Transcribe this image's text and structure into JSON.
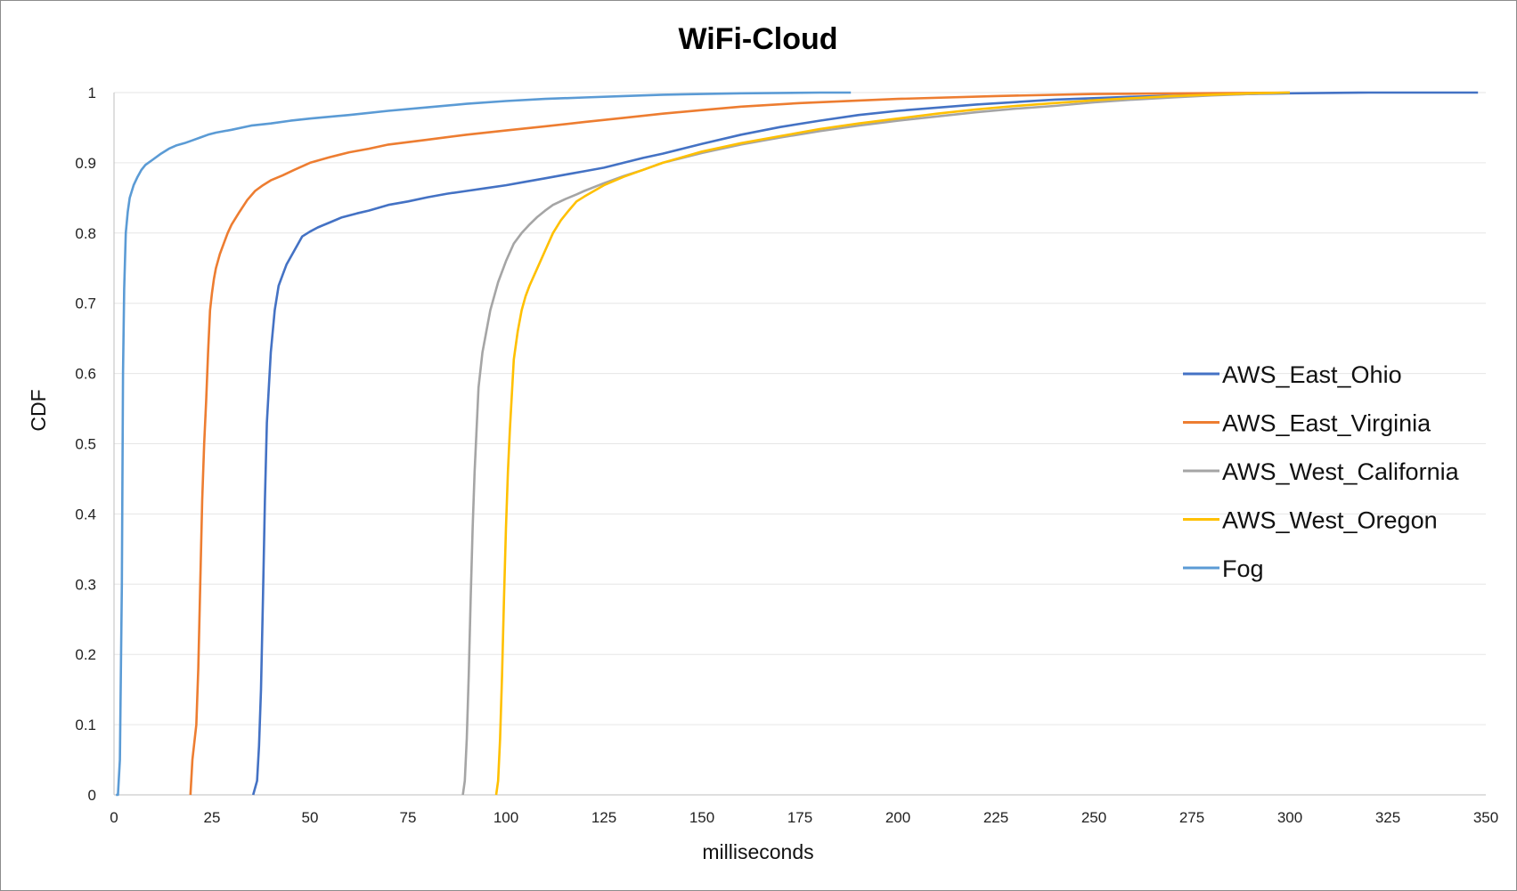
{
  "chart_data": {
    "type": "line",
    "title": "WiFi-Cloud",
    "xlabel": "milliseconds",
    "ylabel": "CDF",
    "xlim": [
      0,
      350
    ],
    "ylim": [
      0,
      1
    ],
    "xticks": [
      0,
      25,
      50,
      75,
      100,
      125,
      150,
      175,
      200,
      225,
      250,
      275,
      300,
      325,
      350
    ],
    "yticks": [
      0,
      0.1,
      0.2,
      0.3,
      0.4,
      0.5,
      0.6,
      0.7,
      0.8,
      0.9,
      1
    ],
    "xtick_labels": [
      "0",
      "25",
      "50",
      "75",
      "100",
      "125",
      "150",
      "175",
      "200",
      "225",
      "250",
      "275",
      "300",
      "325",
      "350"
    ],
    "ytick_labels": [
      "0",
      "0.1",
      "0.2",
      "0.3",
      "0.4",
      "0.5",
      "0.6",
      "0.7",
      "0.8",
      "0.9",
      "1"
    ],
    "grid": "horizontal",
    "legend_position": "right",
    "series": [
      {
        "name": "AWS_East_Ohio",
        "color": "#4472C4",
        "x": [
          35.5,
          36.5,
          37,
          37.5,
          38,
          38.5,
          39,
          39.5,
          40,
          41,
          42,
          43,
          44,
          46,
          48,
          50,
          52,
          55,
          58,
          62,
          65,
          70,
          75,
          80,
          85,
          90,
          95,
          100,
          105,
          110,
          115,
          120,
          125,
          130,
          135,
          140,
          145,
          150,
          160,
          170,
          180,
          190,
          200,
          220,
          240,
          260,
          280,
          300,
          320,
          340,
          348
        ],
        "y": [
          0,
          0.02,
          0.07,
          0.15,
          0.28,
          0.42,
          0.53,
          0.58,
          0.63,
          0.69,
          0.725,
          0.74,
          0.755,
          0.775,
          0.795,
          0.802,
          0.808,
          0.815,
          0.822,
          0.828,
          0.832,
          0.84,
          0.845,
          0.851,
          0.856,
          0.86,
          0.864,
          0.868,
          0.873,
          0.878,
          0.883,
          0.888,
          0.893,
          0.9,
          0.907,
          0.913,
          0.92,
          0.927,
          0.94,
          0.951,
          0.96,
          0.968,
          0.974,
          0.983,
          0.99,
          0.994,
          0.997,
          0.999,
          1.0,
          1.0,
          1.0
        ]
      },
      {
        "name": "AWS_East_Virginia",
        "color": "#ED7D31",
        "x": [
          19.5,
          20,
          21,
          21.5,
          22,
          22.5,
          23,
          23.5,
          24,
          24.5,
          25,
          25.5,
          26,
          27,
          28,
          29,
          30,
          32,
          34,
          36,
          38,
          40,
          43,
          46,
          50,
          55,
          60,
          65,
          70,
          80,
          90,
          100,
          110,
          120,
          130,
          140,
          150,
          160,
          175,
          200,
          225,
          250,
          275,
          300
        ],
        "y": [
          0,
          0.05,
          0.1,
          0.18,
          0.3,
          0.42,
          0.5,
          0.56,
          0.63,
          0.69,
          0.715,
          0.735,
          0.75,
          0.77,
          0.785,
          0.8,
          0.812,
          0.83,
          0.847,
          0.86,
          0.868,
          0.875,
          0.882,
          0.89,
          0.9,
          0.908,
          0.915,
          0.92,
          0.926,
          0.933,
          0.94,
          0.946,
          0.952,
          0.958,
          0.964,
          0.97,
          0.975,
          0.98,
          0.985,
          0.991,
          0.995,
          0.998,
          0.999,
          1.0
        ]
      },
      {
        "name": "AWS_West_California",
        "color": "#A5A5A5",
        "x": [
          89,
          89.5,
          90,
          90.5,
          91,
          91.5,
          92,
          92.5,
          93,
          94,
          95,
          96,
          97,
          98,
          100,
          102,
          104,
          106,
          108,
          110,
          112,
          115,
          118,
          120,
          125,
          130,
          135,
          140,
          150,
          160,
          170,
          180,
          190,
          200,
          210,
          220,
          230,
          240,
          250,
          260,
          270,
          280,
          290,
          300
        ],
        "y": [
          0,
          0.02,
          0.08,
          0.17,
          0.28,
          0.38,
          0.46,
          0.52,
          0.58,
          0.63,
          0.66,
          0.69,
          0.71,
          0.73,
          0.76,
          0.785,
          0.8,
          0.812,
          0.823,
          0.832,
          0.84,
          0.848,
          0.855,
          0.86,
          0.871,
          0.881,
          0.89,
          0.9,
          0.914,
          0.926,
          0.936,
          0.945,
          0.953,
          0.96,
          0.966,
          0.972,
          0.977,
          0.981,
          0.986,
          0.99,
          0.993,
          0.996,
          0.998,
          1.0
        ]
      },
      {
        "name": "AWS_West_Oregon",
        "color": "#FFC000",
        "x": [
          97.5,
          98,
          98.5,
          99,
          99.5,
          100,
          100.5,
          101,
          101.5,
          102,
          103,
          104,
          105,
          106,
          108,
          110,
          112,
          114,
          116,
          118,
          120,
          125,
          130,
          135,
          140,
          150,
          160,
          170,
          180,
          190,
          200,
          210,
          220,
          230,
          240,
          250,
          260,
          270,
          280,
          290,
          300
        ],
        "y": [
          0,
          0.02,
          0.08,
          0.17,
          0.28,
          0.38,
          0.46,
          0.52,
          0.57,
          0.62,
          0.66,
          0.69,
          0.71,
          0.725,
          0.75,
          0.775,
          0.8,
          0.818,
          0.832,
          0.845,
          0.852,
          0.868,
          0.88,
          0.89,
          0.9,
          0.916,
          0.928,
          0.938,
          0.948,
          0.956,
          0.963,
          0.97,
          0.976,
          0.981,
          0.985,
          0.989,
          0.992,
          0.995,
          0.997,
          0.999,
          1.0
        ]
      },
      {
        "name": "Fog",
        "color": "#5B9BD5",
        "x": [
          0.5,
          1,
          1.5,
          2,
          2.3,
          2.6,
          3,
          3.5,
          4,
          5,
          6,
          7,
          8,
          10,
          12,
          14,
          16,
          18,
          20,
          22,
          24,
          26,
          28,
          30,
          35,
          40,
          45,
          50,
          60,
          70,
          80,
          90,
          100,
          110,
          120,
          130,
          140,
          150,
          160,
          170,
          180,
          188
        ],
        "y": [
          0,
          0,
          0.05,
          0.3,
          0.6,
          0.72,
          0.8,
          0.83,
          0.85,
          0.868,
          0.88,
          0.89,
          0.897,
          0.905,
          0.913,
          0.92,
          0.925,
          0.928,
          0.932,
          0.936,
          0.94,
          0.943,
          0.945,
          0.947,
          0.953,
          0.956,
          0.96,
          0.963,
          0.968,
          0.974,
          0.979,
          0.984,
          0.988,
          0.991,
          0.993,
          0.995,
          0.997,
          0.998,
          0.999,
          0.9995,
          1.0,
          1.0
        ]
      }
    ]
  }
}
